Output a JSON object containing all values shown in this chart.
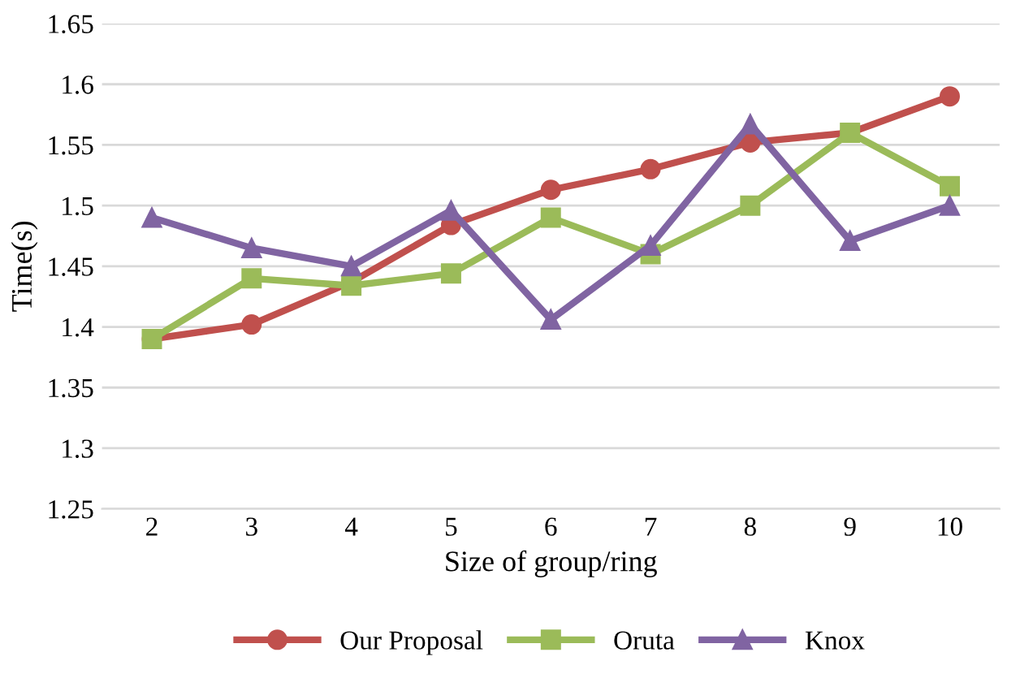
{
  "chart_data": {
    "type": "line",
    "xlabel": "Size of group/ring",
    "ylabel": "Time(s)",
    "categories": [
      "2",
      "3",
      "4",
      "5",
      "6",
      "7",
      "8",
      "9",
      "10"
    ],
    "series": [
      {
        "name": "Our Proposal",
        "color": "#c0504d",
        "marker": "circle",
        "values": [
          1.39,
          1.402,
          1.437,
          1.484,
          1.513,
          1.53,
          1.552,
          1.56,
          1.59
        ]
      },
      {
        "name": "Oruta",
        "color": "#9bbb59",
        "marker": "square",
        "values": [
          1.39,
          1.44,
          1.434,
          1.444,
          1.49,
          1.46,
          1.5,
          1.56,
          1.516
        ]
      },
      {
        "name": "Knox",
        "color": "#8064a2",
        "marker": "triangle",
        "values": [
          1.49,
          1.465,
          1.45,
          1.496,
          1.406,
          1.467,
          1.567,
          1.471,
          1.5
        ]
      }
    ],
    "ylim": [
      1.25,
      1.65
    ],
    "yticks": [
      1.25,
      1.3,
      1.35,
      1.4,
      1.45,
      1.5,
      1.55,
      1.6,
      1.65
    ],
    "grid": "y",
    "legend": "bottom",
    "line_style": "solid"
  }
}
